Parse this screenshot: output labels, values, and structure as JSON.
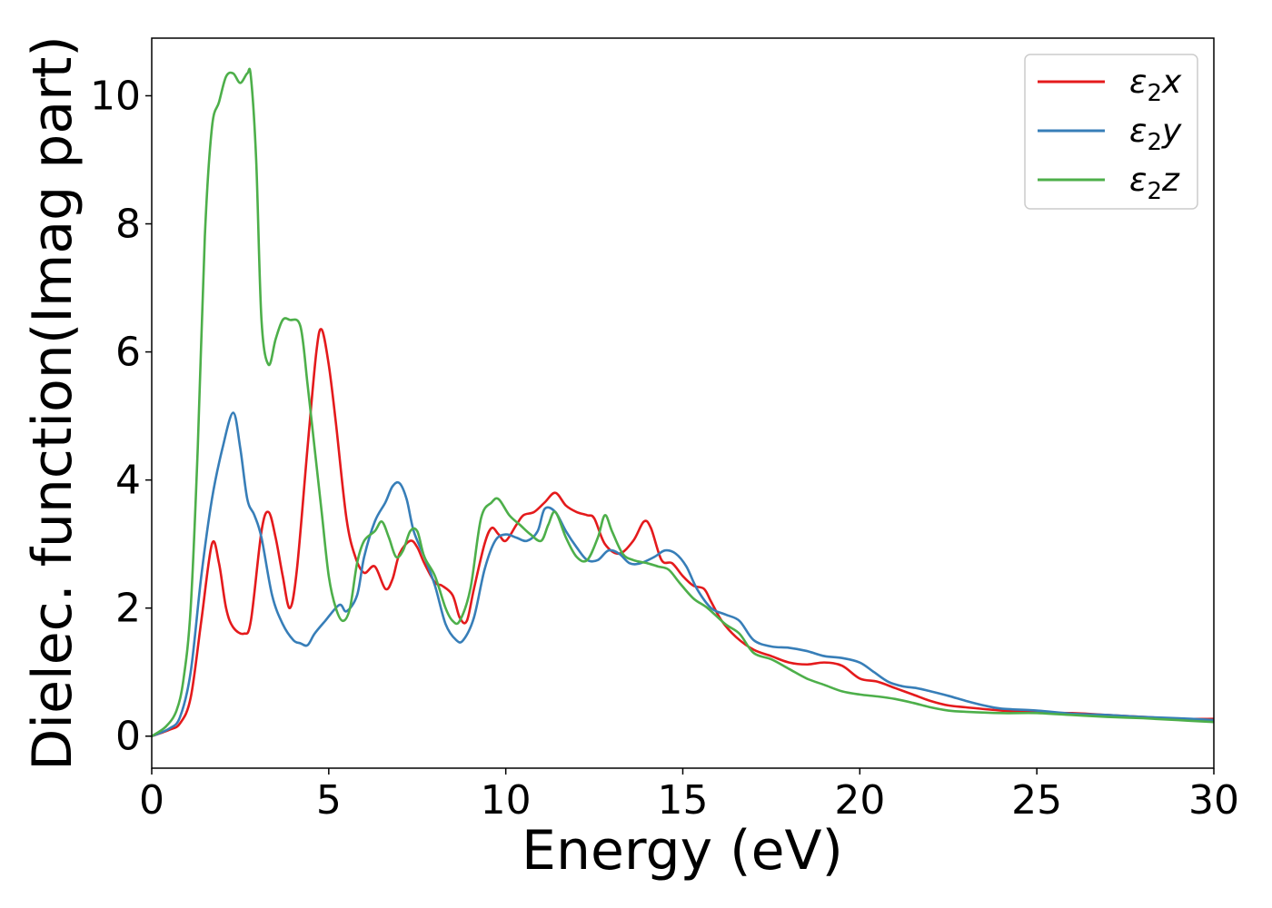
{
  "chart_data": {
    "type": "line",
    "xlabel": "Energy (eV)",
    "ylabel": "Dielec. function(Imag part)",
    "xlim": [
      0,
      30
    ],
    "ylim": [
      -0.5,
      10.9
    ],
    "xticks": [
      0,
      5,
      10,
      15,
      20,
      25,
      30
    ],
    "yticks": [
      0,
      2,
      4,
      6,
      8,
      10
    ],
    "grid": false,
    "legend_position": "top-right",
    "series": [
      {
        "name": "ε2x",
        "label_base": "ε",
        "label_sub": "2",
        "label_axis": "x",
        "color": "#e41a1c",
        "points": [
          [
            0,
            0
          ],
          [
            0.5,
            0.1
          ],
          [
            0.8,
            0.2
          ],
          [
            1.1,
            0.6
          ],
          [
            1.4,
            1.8
          ],
          [
            1.7,
            3.0
          ],
          [
            1.9,
            2.7
          ],
          [
            2.1,
            2.0
          ],
          [
            2.3,
            1.7
          ],
          [
            2.6,
            1.6
          ],
          [
            2.8,
            1.8
          ],
          [
            3.1,
            3.2
          ],
          [
            3.3,
            3.5
          ],
          [
            3.5,
            3.1
          ],
          [
            3.7,
            2.5
          ],
          [
            3.9,
            2.0
          ],
          [
            4.1,
            2.6
          ],
          [
            4.4,
            4.5
          ],
          [
            4.65,
            6.0
          ],
          [
            4.8,
            6.35
          ],
          [
            5.0,
            5.8
          ],
          [
            5.2,
            4.9
          ],
          [
            5.5,
            3.4
          ],
          [
            5.75,
            2.8
          ],
          [
            6.0,
            2.55
          ],
          [
            6.3,
            2.65
          ],
          [
            6.6,
            2.3
          ],
          [
            6.8,
            2.45
          ],
          [
            7.0,
            2.85
          ],
          [
            7.3,
            3.05
          ],
          [
            7.5,
            2.95
          ],
          [
            7.7,
            2.7
          ],
          [
            8.0,
            2.4
          ],
          [
            8.2,
            2.35
          ],
          [
            8.5,
            2.2
          ],
          [
            8.7,
            1.85
          ],
          [
            8.9,
            1.8
          ],
          [
            9.1,
            2.3
          ],
          [
            9.4,
            3.0
          ],
          [
            9.6,
            3.25
          ],
          [
            9.8,
            3.15
          ],
          [
            10.0,
            3.05
          ],
          [
            10.3,
            3.3
          ],
          [
            10.5,
            3.45
          ],
          [
            10.8,
            3.5
          ],
          [
            11.1,
            3.65
          ],
          [
            11.4,
            3.8
          ],
          [
            11.7,
            3.6
          ],
          [
            12.0,
            3.5
          ],
          [
            12.3,
            3.45
          ],
          [
            12.5,
            3.4
          ],
          [
            12.8,
            3.0
          ],
          [
            13.2,
            2.85
          ],
          [
            13.6,
            3.05
          ],
          [
            13.9,
            3.35
          ],
          [
            14.1,
            3.25
          ],
          [
            14.4,
            2.75
          ],
          [
            14.7,
            2.7
          ],
          [
            15.0,
            2.5
          ],
          [
            15.3,
            2.35
          ],
          [
            15.6,
            2.3
          ],
          [
            15.8,
            2.1
          ],
          [
            16.1,
            1.8
          ],
          [
            16.5,
            1.55
          ],
          [
            17.0,
            1.35
          ],
          [
            17.5,
            1.25
          ],
          [
            18.0,
            1.15
          ],
          [
            18.5,
            1.12
          ],
          [
            19.0,
            1.15
          ],
          [
            19.5,
            1.1
          ],
          [
            20.0,
            0.9
          ],
          [
            20.5,
            0.85
          ],
          [
            21.0,
            0.75
          ],
          [
            21.5,
            0.65
          ],
          [
            22.0,
            0.55
          ],
          [
            22.5,
            0.48
          ],
          [
            23.0,
            0.45
          ],
          [
            24.0,
            0.4
          ],
          [
            25.0,
            0.37
          ],
          [
            26.0,
            0.36
          ],
          [
            27.0,
            0.33
          ],
          [
            28.0,
            0.3
          ],
          [
            29.0,
            0.27
          ],
          [
            30.0,
            0.27
          ]
        ]
      },
      {
        "name": "ε2y",
        "label_base": "ε",
        "label_sub": "2",
        "label_axis": "y",
        "color": "#377eb8",
        "points": [
          [
            0,
            0
          ],
          [
            0.5,
            0.12
          ],
          [
            0.8,
            0.3
          ],
          [
            1.1,
            1.0
          ],
          [
            1.4,
            2.5
          ],
          [
            1.7,
            3.7
          ],
          [
            2.0,
            4.5
          ],
          [
            2.3,
            5.05
          ],
          [
            2.5,
            4.5
          ],
          [
            2.7,
            3.7
          ],
          [
            2.9,
            3.45
          ],
          [
            3.1,
            3.1
          ],
          [
            3.4,
            2.2
          ],
          [
            3.7,
            1.75
          ],
          [
            4.0,
            1.5
          ],
          [
            4.2,
            1.45
          ],
          [
            4.4,
            1.42
          ],
          [
            4.6,
            1.6
          ],
          [
            4.9,
            1.8
          ],
          [
            5.3,
            2.05
          ],
          [
            5.5,
            1.95
          ],
          [
            5.8,
            2.2
          ],
          [
            6.0,
            2.8
          ],
          [
            6.3,
            3.35
          ],
          [
            6.6,
            3.65
          ],
          [
            6.8,
            3.9
          ],
          [
            7.0,
            3.95
          ],
          [
            7.2,
            3.7
          ],
          [
            7.4,
            3.2
          ],
          [
            7.7,
            2.8
          ],
          [
            8.0,
            2.35
          ],
          [
            8.3,
            1.75
          ],
          [
            8.6,
            1.5
          ],
          [
            8.8,
            1.5
          ],
          [
            9.1,
            1.85
          ],
          [
            9.4,
            2.6
          ],
          [
            9.7,
            3.05
          ],
          [
            10.0,
            3.15
          ],
          [
            10.3,
            3.1
          ],
          [
            10.6,
            3.05
          ],
          [
            10.9,
            3.2
          ],
          [
            11.1,
            3.55
          ],
          [
            11.4,
            3.5
          ],
          [
            11.7,
            3.2
          ],
          [
            12.0,
            2.95
          ],
          [
            12.3,
            2.75
          ],
          [
            12.6,
            2.75
          ],
          [
            12.9,
            2.9
          ],
          [
            13.2,
            2.85
          ],
          [
            13.5,
            2.7
          ],
          [
            13.8,
            2.7
          ],
          [
            14.2,
            2.8
          ],
          [
            14.5,
            2.9
          ],
          [
            14.8,
            2.85
          ],
          [
            15.1,
            2.65
          ],
          [
            15.4,
            2.3
          ],
          [
            15.8,
            2.0
          ],
          [
            16.2,
            1.9
          ],
          [
            16.6,
            1.8
          ],
          [
            17.0,
            1.5
          ],
          [
            17.5,
            1.4
          ],
          [
            18.0,
            1.38
          ],
          [
            18.5,
            1.33
          ],
          [
            19.0,
            1.25
          ],
          [
            19.5,
            1.22
          ],
          [
            20.0,
            1.15
          ],
          [
            20.4,
            1.0
          ],
          [
            20.8,
            0.85
          ],
          [
            21.2,
            0.78
          ],
          [
            21.6,
            0.75
          ],
          [
            22.0,
            0.7
          ],
          [
            22.5,
            0.63
          ],
          [
            23.0,
            0.55
          ],
          [
            23.5,
            0.48
          ],
          [
            24.0,
            0.43
          ],
          [
            25.0,
            0.4
          ],
          [
            26.0,
            0.35
          ],
          [
            27.0,
            0.33
          ],
          [
            28.0,
            0.3
          ],
          [
            29.0,
            0.28
          ],
          [
            30.0,
            0.25
          ]
        ]
      },
      {
        "name": "ε2z",
        "label_base": "ε",
        "label_sub": "2",
        "label_axis": "z",
        "color": "#4daf4a",
        "points": [
          [
            0,
            0
          ],
          [
            0.4,
            0.15
          ],
          [
            0.7,
            0.4
          ],
          [
            0.9,
            0.9
          ],
          [
            1.1,
            2.0
          ],
          [
            1.3,
            4.5
          ],
          [
            1.5,
            7.8
          ],
          [
            1.7,
            9.5
          ],
          [
            1.9,
            9.9
          ],
          [
            2.1,
            10.3
          ],
          [
            2.3,
            10.35
          ],
          [
            2.5,
            10.2
          ],
          [
            2.7,
            10.35
          ],
          [
            2.8,
            10.3
          ],
          [
            2.95,
            9.0
          ],
          [
            3.1,
            6.5
          ],
          [
            3.3,
            5.8
          ],
          [
            3.5,
            6.2
          ],
          [
            3.7,
            6.5
          ],
          [
            3.9,
            6.5
          ],
          [
            4.2,
            6.4
          ],
          [
            4.4,
            5.5
          ],
          [
            4.6,
            4.5
          ],
          [
            4.8,
            3.5
          ],
          [
            5.0,
            2.5
          ],
          [
            5.2,
            2.0
          ],
          [
            5.4,
            1.8
          ],
          [
            5.6,
            2.0
          ],
          [
            5.8,
            2.7
          ],
          [
            6.0,
            3.05
          ],
          [
            6.3,
            3.2
          ],
          [
            6.5,
            3.35
          ],
          [
            6.7,
            3.1
          ],
          [
            6.9,
            2.8
          ],
          [
            7.1,
            2.9
          ],
          [
            7.3,
            3.2
          ],
          [
            7.5,
            3.2
          ],
          [
            7.7,
            2.8
          ],
          [
            8.0,
            2.5
          ],
          [
            8.3,
            2.0
          ],
          [
            8.5,
            1.8
          ],
          [
            8.7,
            1.8
          ],
          [
            9.0,
            2.3
          ],
          [
            9.3,
            3.4
          ],
          [
            9.6,
            3.65
          ],
          [
            9.8,
            3.7
          ],
          [
            10.1,
            3.45
          ],
          [
            10.4,
            3.3
          ],
          [
            10.7,
            3.15
          ],
          [
            11.0,
            3.05
          ],
          [
            11.2,
            3.3
          ],
          [
            11.4,
            3.5
          ],
          [
            11.7,
            3.1
          ],
          [
            12.0,
            2.8
          ],
          [
            12.3,
            2.75
          ],
          [
            12.6,
            3.1
          ],
          [
            12.8,
            3.45
          ],
          [
            13.0,
            3.2
          ],
          [
            13.3,
            2.85
          ],
          [
            13.6,
            2.75
          ],
          [
            14.0,
            2.7
          ],
          [
            14.3,
            2.65
          ],
          [
            14.6,
            2.6
          ],
          [
            14.9,
            2.4
          ],
          [
            15.3,
            2.15
          ],
          [
            15.7,
            2.0
          ],
          [
            16.2,
            1.75
          ],
          [
            16.6,
            1.6
          ],
          [
            17.0,
            1.3
          ],
          [
            17.5,
            1.2
          ],
          [
            18.0,
            1.05
          ],
          [
            18.5,
            0.9
          ],
          [
            19.0,
            0.8
          ],
          [
            19.5,
            0.7
          ],
          [
            20.0,
            0.65
          ],
          [
            20.5,
            0.62
          ],
          [
            21.0,
            0.58
          ],
          [
            21.5,
            0.52
          ],
          [
            22.0,
            0.45
          ],
          [
            22.5,
            0.4
          ],
          [
            23.0,
            0.38
          ],
          [
            24.0,
            0.36
          ],
          [
            25.0,
            0.36
          ],
          [
            26.0,
            0.33
          ],
          [
            27.0,
            0.3
          ],
          [
            28.0,
            0.28
          ],
          [
            29.0,
            0.25
          ],
          [
            30.0,
            0.22
          ]
        ]
      }
    ]
  }
}
